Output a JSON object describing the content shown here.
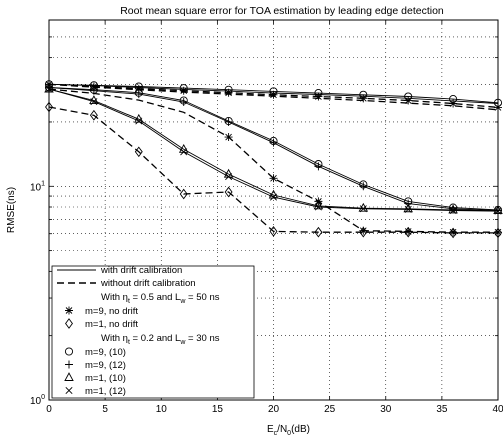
{
  "chart_data": {
    "type": "line",
    "title": "Root mean square error for TOA estimation by leading edge detection",
    "xlabel": "E",
    "xlabel_sub1": "c",
    "xlabel_mid": "/N",
    "xlabel_sub2": "0",
    "xlabel_end": "(dB)",
    "ylabel": "RMSE(ns)",
    "xlim": [
      0,
      40
    ],
    "ylim": [
      1,
      60
    ],
    "yscale": "log",
    "grid": true,
    "xticks": [
      "0",
      "5",
      "10",
      "15",
      "20",
      "25",
      "30",
      "35",
      "40"
    ],
    "yticks": [
      {
        "base": "10",
        "exp": "0",
        "value": 1
      },
      {
        "base": "10",
        "exp": "1",
        "value": 10
      }
    ],
    "x": [
      0,
      4,
      8,
      12,
      16,
      20,
      24,
      28,
      32,
      36,
      40
    ],
    "series": [
      {
        "style": "solid",
        "marker": "none",
        "values": [
          30,
          29.7,
          29.3,
          28.8,
          28.3,
          27.8,
          27.3,
          26.8,
          26.3,
          25.6,
          24.6
        ]
      },
      {
        "style": "solid",
        "marker": "none",
        "values": [
          30,
          29.6,
          29.0,
          28.4,
          27.9,
          27.3,
          26.9,
          26.4,
          25.8,
          25.1,
          24.4
        ]
      },
      {
        "style": "solid",
        "marker": "none",
        "values": [
          29,
          28.3,
          27.4,
          25.2,
          20.2,
          16.3,
          12.7,
          10.2,
          8.5,
          7.95,
          7.75
        ]
      },
      {
        "style": "solid",
        "marker": "none",
        "values": [
          29,
          28.0,
          27.0,
          24.8,
          20.0,
          16.0,
          12.4,
          10.0,
          8.3,
          7.85,
          7.7
        ]
      },
      {
        "style": "solid",
        "marker": "none",
        "values": [
          28.5,
          25.2,
          20.6,
          14.9,
          11.4,
          9.1,
          8.1,
          7.9,
          7.85,
          7.75,
          7.7
        ]
      },
      {
        "style": "solid",
        "marker": "none",
        "values": [
          28.5,
          24.9,
          20.2,
          14.5,
          11.1,
          8.9,
          8.0,
          7.85,
          7.8,
          7.7,
          7.65
        ]
      },
      {
        "style": "dashed",
        "marker": "none",
        "values": [
          30,
          29.3,
          28.6,
          28.0,
          27.4,
          26.8,
          26.3,
          25.8,
          25.2,
          24.4,
          23.4
        ]
      },
      {
        "style": "dashed",
        "marker": "none",
        "values": [
          30,
          29.1,
          28.3,
          27.6,
          27.0,
          26.4,
          25.8,
          25.2,
          24.5,
          23.8,
          22.8
        ]
      },
      {
        "style": "dashed",
        "marker": "none",
        "values": [
          28.5,
          27.2,
          25.3,
          22.2,
          17.0,
          10.9,
          8.5,
          6.2,
          6.15,
          6.1,
          6.1
        ]
      },
      {
        "style": "dashed",
        "marker": "none",
        "values": [
          23.5,
          21.5,
          14.5,
          9.2,
          9.4,
          6.15,
          6.1,
          6.1,
          6.1,
          6.05,
          6.05
        ]
      },
      {
        "style": "none",
        "marker": "star",
        "values": [
          30,
          29.3,
          28.6,
          28.0,
          27.4,
          26.8,
          26.3,
          25.8,
          25.2,
          24.4,
          23.4
        ]
      },
      {
        "style": "none",
        "marker": "star",
        "values": [
          null,
          null,
          null,
          null,
          17.0,
          10.9,
          8.5,
          6.2,
          6.15,
          6.1,
          6.1
        ]
      },
      {
        "style": "none",
        "marker": "diamond",
        "values": [
          23.5,
          21.5,
          14.5,
          9.2,
          9.4,
          6.15,
          6.1,
          6.1,
          6.1,
          6.05,
          6.05
        ]
      },
      {
        "style": "none",
        "marker": "circle",
        "values": [
          30,
          29.7,
          29.3,
          28.8,
          28.3,
          27.8,
          27.3,
          26.8,
          26.3,
          25.6,
          24.6
        ]
      },
      {
        "style": "none",
        "marker": "circle",
        "values": [
          29,
          28.3,
          27.4,
          25.2,
          20.2,
          16.3,
          12.7,
          10.2,
          8.5,
          7.95,
          7.75
        ]
      },
      {
        "style": "none",
        "marker": "plus",
        "values": [
          29,
          28.0,
          27.0,
          24.8,
          20.0,
          16.0,
          12.4,
          10.0,
          8.3,
          7.85,
          7.7
        ]
      },
      {
        "style": "none",
        "marker": "triangle",
        "values": [
          28.5,
          25.2,
          20.6,
          14.9,
          11.4,
          9.1,
          8.1,
          7.9,
          7.85,
          7.75,
          7.7
        ]
      },
      {
        "style": "none",
        "marker": "cross",
        "values": [
          28.5,
          24.9,
          20.2,
          14.5,
          11.1,
          8.9,
          8.0,
          7.85,
          7.8,
          7.7,
          7.65
        ]
      }
    ],
    "legend": {
      "placement": "bottom-left",
      "entries": [
        {
          "type": "line",
          "style": "solid",
          "label": "with drift calibration"
        },
        {
          "type": "line",
          "style": "dashed",
          "label": "without drift calibration"
        },
        {
          "type": "text",
          "parts": [
            "With η",
            "t",
            "= 0.5 and L",
            "w",
            "= 50 ns"
          ]
        },
        {
          "type": "marker",
          "marker": "star",
          "label": "m=9, no drift"
        },
        {
          "type": "marker",
          "marker": "diamond",
          "label": "m=1, no drift"
        },
        {
          "type": "text",
          "parts": [
            "With η",
            "t",
            "= 0.2 and L",
            "w",
            "= 30 ns"
          ]
        },
        {
          "type": "marker",
          "marker": "circle",
          "label": "m=9, (10)"
        },
        {
          "type": "marker",
          "marker": "plus",
          "label": "m=9, (12)"
        },
        {
          "type": "marker",
          "marker": "triangle",
          "label": "m=1, (10)"
        },
        {
          "type": "marker",
          "marker": "cross",
          "label": "m=1, (12)"
        }
      ]
    }
  }
}
